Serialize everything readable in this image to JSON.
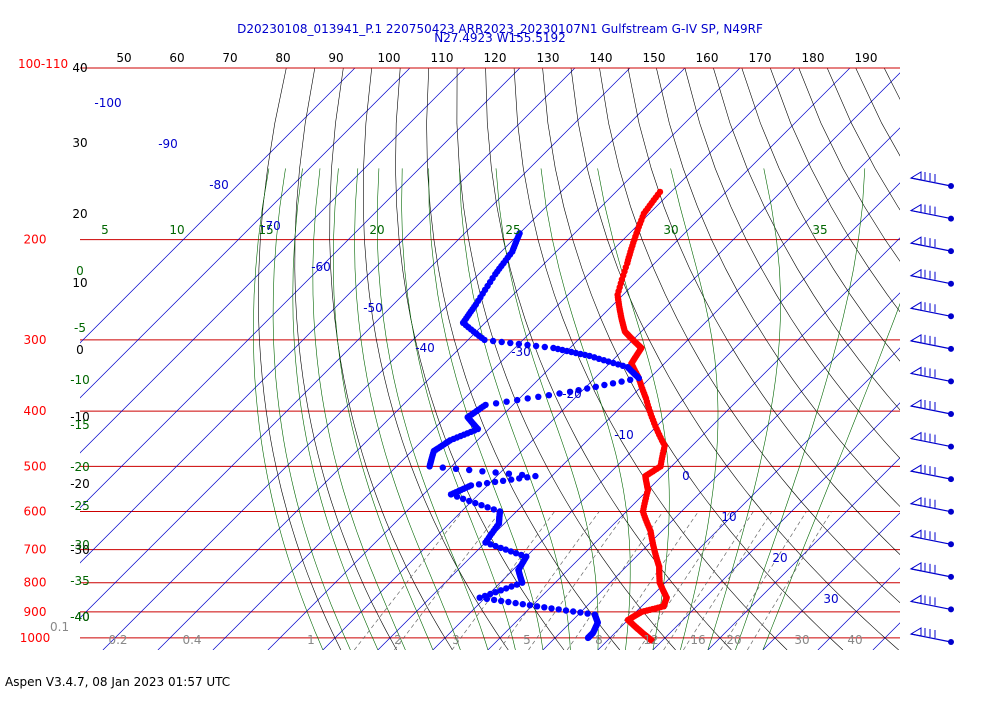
{
  "chart_data": {
    "type": "skew-t",
    "title_line1": "D20230108_013941_P.1 220750423 ARR2023_20230107N1 Gulfstream G-IV SP, N49RF",
    "title_line2": "N27.4923 W155.5192",
    "footer": "Aspen V3.4.7, 08 Jan 2023  01:57 UTC",
    "top_label_left": "100-110",
    "colors": {
      "temperature": "#ff0000",
      "dewpoint": "#0000ff",
      "isobar": "#cc0000",
      "isotherm": "#0000cc",
      "dry_adiabat": "#000000",
      "moist_adiabat": "#006600",
      "mixing_ratio": "#666666",
      "title": "#0000cc"
    },
    "pressure_labels": [
      "200",
      "300",
      "400",
      "500",
      "600",
      "700",
      "800",
      "900",
      "1000"
    ],
    "pressure_label_small": "0.1",
    "top_scale_labels": [
      "50",
      "60",
      "70",
      "80",
      "90",
      "100",
      "110",
      "120",
      "130",
      "140",
      "150",
      "160",
      "170",
      "180",
      "190"
    ],
    "left_black_labels": [
      "40",
      "30",
      "20",
      "10",
      "0",
      "-10",
      "-20",
      "-30",
      "-40"
    ],
    "left_green_labels": [
      "0",
      "-5",
      "-10",
      "-15",
      "-20",
      "-25",
      "-30",
      "-35",
      "-40"
    ],
    "theta_e_labels": [
      "5",
      "10",
      "15",
      "20",
      "25",
      "30",
      "35"
    ],
    "isotherm_labels": [
      "-100",
      "-90",
      "-80",
      "-70",
      "-60",
      "-50",
      "-40",
      "-30",
      "-20",
      "-10",
      "0",
      "10",
      "20",
      "30"
    ],
    "mixing_ratio_labels": [
      "0.2",
      "0.4",
      "1",
      "2",
      "3",
      "5",
      "8",
      "12",
      "16",
      "20",
      "30",
      "40"
    ],
    "wind_barbs_count": 15,
    "temperature_profile": [
      {
        "p": 165,
        "t": -62
      },
      {
        "p": 180,
        "t": -61
      },
      {
        "p": 200,
        "t": -58
      },
      {
        "p": 220,
        "t": -55
      },
      {
        "p": 250,
        "t": -51
      },
      {
        "p": 270,
        "t": -47
      },
      {
        "p": 290,
        "t": -43
      },
      {
        "p": 300,
        "t": -40
      },
      {
        "p": 310,
        "t": -37
      },
      {
        "p": 330,
        "t": -36
      },
      {
        "p": 350,
        "t": -32
      },
      {
        "p": 380,
        "t": -27
      },
      {
        "p": 420,
        "t": -21
      },
      {
        "p": 460,
        "t": -15
      },
      {
        "p": 500,
        "t": -12
      },
      {
        "p": 520,
        "t": -13
      },
      {
        "p": 550,
        "t": -10
      },
      {
        "p": 600,
        "t": -7
      },
      {
        "p": 650,
        "t": -2
      },
      {
        "p": 700,
        "t": 2
      },
      {
        "p": 750,
        "t": 6
      },
      {
        "p": 800,
        "t": 9
      },
      {
        "p": 850,
        "t": 13
      },
      {
        "p": 880,
        "t": 14
      },
      {
        "p": 900,
        "t": 11
      },
      {
        "p": 930,
        "t": 10
      },
      {
        "p": 960,
        "t": 13
      },
      {
        "p": 990,
        "t": 16
      },
      {
        "p": 1010,
        "t": 18
      }
    ],
    "dewpoint_profile": [
      {
        "p": 195,
        "t": -80
      },
      {
        "p": 210,
        "t": -78
      },
      {
        "p": 230,
        "t": -77
      },
      {
        "p": 260,
        "t": -75
      },
      {
        "p": 280,
        "t": -74
      },
      {
        "p": 300,
        "t": -67
      },
      {
        "p": 310,
        "t": -53
      },
      {
        "p": 320,
        "t": -45
      },
      {
        "p": 335,
        "t": -36
      },
      {
        "p": 350,
        "t": -32
      },
      {
        "p": 370,
        "t": -42
      },
      {
        "p": 390,
        "t": -55
      },
      {
        "p": 410,
        "t": -56
      },
      {
        "p": 430,
        "t": -52
      },
      {
        "p": 450,
        "t": -55
      },
      {
        "p": 470,
        "t": -56
      },
      {
        "p": 500,
        "t": -54
      },
      {
        "p": 520,
        "t": -33
      },
      {
        "p": 540,
        "t": -43
      },
      {
        "p": 560,
        "t": -45
      },
      {
        "p": 600,
        "t": -33
      },
      {
        "p": 630,
        "t": -31
      },
      {
        "p": 680,
        "t": -30
      },
      {
        "p": 720,
        "t": -20
      },
      {
        "p": 760,
        "t": -19
      },
      {
        "p": 800,
        "t": -16
      },
      {
        "p": 850,
        "t": -21
      },
      {
        "p": 880,
        "t": -9
      },
      {
        "p": 910,
        "t": 3
      },
      {
        "p": 940,
        "t": 5
      },
      {
        "p": 980,
        "t": 6
      },
      {
        "p": 1000,
        "t": 6
      }
    ]
  }
}
